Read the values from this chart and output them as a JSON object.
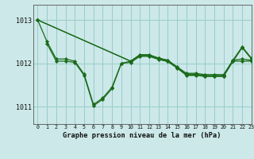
{
  "background_color": "#cce8e8",
  "grid_color": "#99cccc",
  "line_color": "#1a6b1a",
  "marker_color": "#1a6b1a",
  "title": "Graphe pression niveau de la mer (hPa)",
  "xlim": [
    -0.5,
    23
  ],
  "ylim": [
    1010.6,
    1013.35
  ],
  "yticks": [
    1011,
    1012,
    1013
  ],
  "xticks": [
    0,
    1,
    2,
    3,
    4,
    5,
    6,
    7,
    8,
    9,
    10,
    11,
    12,
    13,
    14,
    15,
    16,
    17,
    18,
    19,
    20,
    21,
    22,
    23
  ],
  "series1": [
    1013.0,
    1012.5,
    1012.1,
    1012.1,
    1012.05,
    1011.75,
    1011.05,
    1011.2,
    1011.45,
    1012.0,
    1012.05,
    1012.18,
    1012.18,
    1012.1,
    1012.05,
    1011.9,
    1011.75,
    1011.75,
    1011.72,
    1011.72,
    1011.72,
    1012.05,
    1012.05,
    1012.05
  ],
  "series2": [
    1013.0,
    null,
    null,
    null,
    null,
    null,
    null,
    null,
    null,
    null,
    1012.05,
    1012.18,
    1012.18,
    1012.12,
    1012.07,
    1011.92,
    1011.77,
    1011.77,
    1011.74,
    1011.74,
    1011.74,
    1012.07,
    1012.38,
    1012.12
  ],
  "series3": [
    1013.0,
    null,
    null,
    null,
    null,
    null,
    null,
    null,
    null,
    null,
    1012.05,
    1012.2,
    1012.2,
    1012.12,
    1012.07,
    1011.9,
    1011.72,
    1011.72,
    1011.7,
    1011.7,
    1011.7,
    1012.07,
    1012.1,
    1012.07
  ],
  "series4": [
    null,
    1012.45,
    1012.05,
    1012.05,
    1012.02,
    1011.72,
    1011.02,
    1011.17,
    1011.42,
    1012.0,
    1012.02,
    1012.16,
    1012.16,
    1012.09,
    1012.04,
    1011.89,
    1011.73,
    1011.73,
    1011.7,
    1011.7,
    1011.7,
    1012.04,
    1012.36,
    1012.1
  ]
}
